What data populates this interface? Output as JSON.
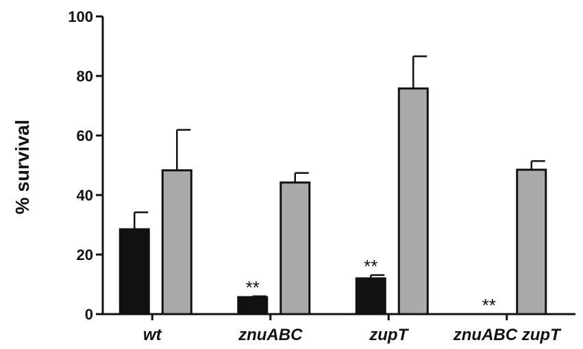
{
  "chart_data": {
    "type": "bar",
    "categories": [
      "wt",
      "znuABC",
      "zupT",
      "znuABC zupT"
    ],
    "series": [
      {
        "values": [
          28.5,
          5.7,
          12.0,
          0
        ],
        "errors": [
          5.7,
          0.3,
          1.1,
          0
        ],
        "color": "#111111"
      },
      {
        "values": [
          48.3,
          44.2,
          75.8,
          48.5
        ],
        "errors": [
          13.6,
          3.2,
          10.8,
          2.9
        ],
        "color": "#aaaaaa"
      }
    ],
    "annotations": [
      {
        "category": "znuABC",
        "series": 0,
        "text": "**"
      },
      {
        "category": "zupT",
        "series": 0,
        "text": "**"
      },
      {
        "category": "znuABC zupT",
        "series": 0,
        "text": "**"
      }
    ],
    "title": "",
    "xlabel": "",
    "ylabel": "% survival",
    "ylim": [
      0,
      100
    ],
    "yticks": [
      "0",
      "20",
      "40",
      "60",
      "80",
      "100"
    ],
    "grid": false,
    "legend": "none"
  }
}
